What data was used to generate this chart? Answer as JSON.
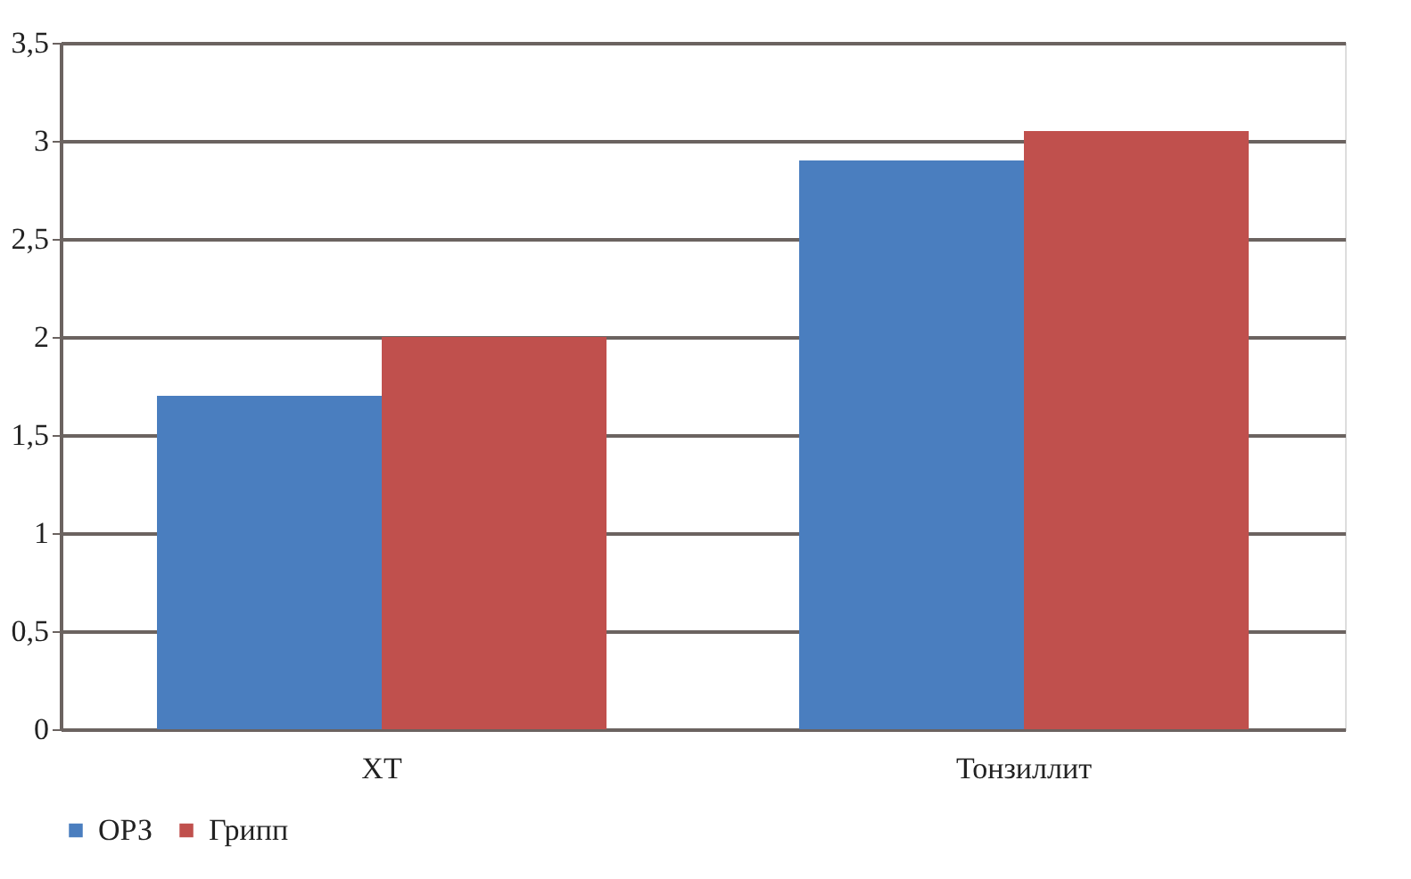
{
  "chart_data": {
    "type": "bar",
    "categories": [
      "ХТ",
      "Тонзиллит"
    ],
    "series": [
      {
        "name": "ОРЗ",
        "color": "#4a7ebf",
        "values": [
          1.7,
          2.9
        ]
      },
      {
        "name": "Грипп",
        "color": "#c0504d",
        "values": [
          2.0,
          3.05
        ]
      }
    ],
    "ylim": [
      0,
      3.5
    ],
    "yticks": [
      0,
      {
        "value": 0.5,
        "label": "0,5"
      },
      1,
      {
        "value": 1.5,
        "label": "1,5"
      },
      2,
      {
        "value": 2.5,
        "label": "2,5"
      },
      3,
      {
        "value": 3.5,
        "label": "3,5"
      }
    ],
    "grid": "y",
    "legend": "bottom"
  }
}
